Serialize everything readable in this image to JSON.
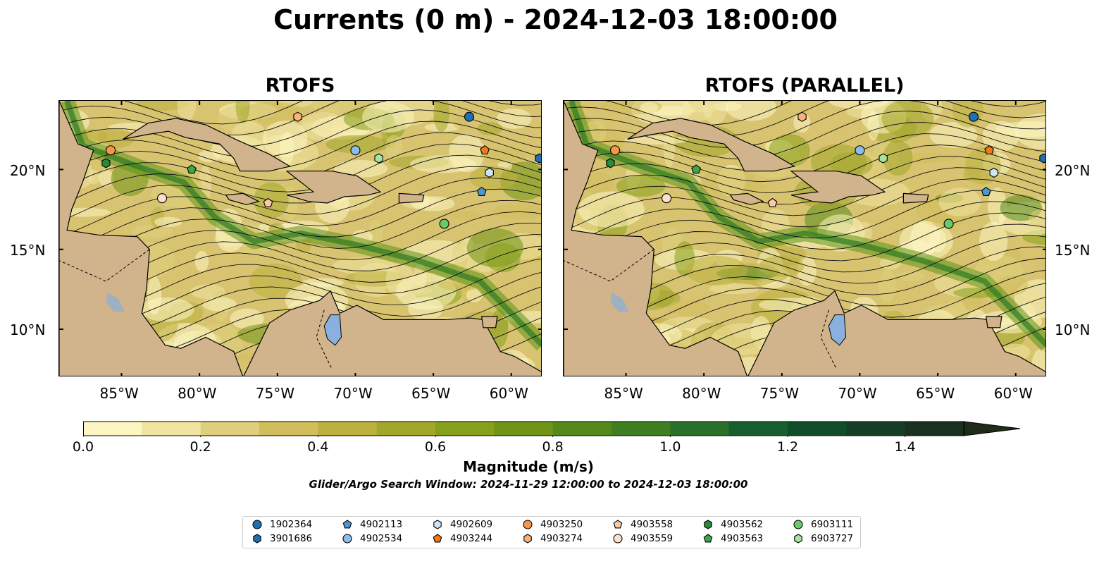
{
  "title": "Currents (0 m) - 2024-12-03 18:00:00",
  "panels": [
    {
      "title": "RTOFS"
    },
    {
      "title": "RTOFS (PARALLEL)"
    }
  ],
  "map": {
    "lon_range": [
      -89,
      -58
    ],
    "lat_range": [
      7,
      24.3
    ],
    "lat_ticks": [
      "20°N",
      "15°N",
      "10°N"
    ],
    "lon_ticks": [
      "85°W",
      "80°W",
      "75°W",
      "70°W",
      "65°W",
      "60°W"
    ],
    "land_color": "#d2b48c",
    "lake_color": "#8ab0dd",
    "ocean_low_color": "#fcf4c4",
    "ocean_high_color": "#1f2c18"
  },
  "colorbar": {
    "label": "Magnitude (m/s)",
    "ticks": [
      "0.0",
      "0.2",
      "0.4",
      "0.6",
      "0.8",
      "1.0",
      "1.2",
      "1.4"
    ],
    "range": [
      0,
      1.5
    ],
    "extend": "max",
    "colors": [
      "#fdf6c3",
      "#f0e4a0",
      "#dfcf7c",
      "#d1bd5c",
      "#bcb03f",
      "#a2a62a",
      "#87a01c",
      "#6f9417",
      "#558a1b",
      "#3f7f22",
      "#2a6f2a",
      "#17602e",
      "#124d2a",
      "#163e27",
      "#1a3020",
      "#1f2c18"
    ]
  },
  "search_window": "Glider/Argo Search Window: 2024-11-29 12:00:00 to 2024-12-03 18:00:00",
  "legend": [
    {
      "id": "1902364",
      "shape": "circle",
      "color": "#1f6fb4"
    },
    {
      "id": "3901686",
      "shape": "hexagon",
      "color": "#1f6fb4"
    },
    {
      "id": "4902113",
      "shape": "pentagon",
      "color": "#4f95d0"
    },
    {
      "id": "4902534",
      "shape": "circle",
      "color": "#8bbde6"
    },
    {
      "id": "4902609",
      "shape": "hexagon",
      "color": "#cce4f6"
    },
    {
      "id": "4903244",
      "shape": "pentagon",
      "color": "#f07818"
    },
    {
      "id": "4903250",
      "shape": "circle",
      "color": "#f5964a"
    },
    {
      "id": "4903274",
      "shape": "hexagon",
      "color": "#f9b278"
    },
    {
      "id": "4903558",
      "shape": "pentagon",
      "color": "#fbc9a4"
    },
    {
      "id": "4903559",
      "shape": "circle",
      "color": "#fde0cc"
    },
    {
      "id": "4903562",
      "shape": "hexagon",
      "color": "#2a8a38"
    },
    {
      "id": "4903563",
      "shape": "pentagon",
      "color": "#3da64a"
    },
    {
      "id": "6903111",
      "shape": "circle",
      "color": "#6cc96a"
    },
    {
      "id": "6903727",
      "shape": "hexagon",
      "color": "#a9e3a0"
    }
  ],
  "floats": [
    {
      "id": "1902364",
      "lon": -62.7,
      "lat": 23.3
    },
    {
      "id": "3901686",
      "lon": -58.2,
      "lat": 20.7
    },
    {
      "id": "4902113",
      "lon": -61.9,
      "lat": 18.6
    },
    {
      "id": "4902534",
      "lon": -70.0,
      "lat": 21.2
    },
    {
      "id": "4902609",
      "lon": -61.4,
      "lat": 19.8
    },
    {
      "id": "4903244",
      "lon": -61.7,
      "lat": 21.2
    },
    {
      "id": "4903250",
      "lon": -85.7,
      "lat": 21.2
    },
    {
      "id": "4903274",
      "lon": -73.7,
      "lat": 23.3
    },
    {
      "id": "4903558",
      "lon": -75.6,
      "lat": 17.9
    },
    {
      "id": "4903559",
      "lon": -82.4,
      "lat": 18.2
    },
    {
      "id": "4903562",
      "lon": -86.0,
      "lat": 20.4
    },
    {
      "id": "4903563",
      "lon": -80.5,
      "lat": 20.0
    },
    {
      "id": "6903111",
      "lon": -64.3,
      "lat": 16.6
    },
    {
      "id": "6903727",
      "lon": -68.5,
      "lat": 20.7
    }
  ]
}
